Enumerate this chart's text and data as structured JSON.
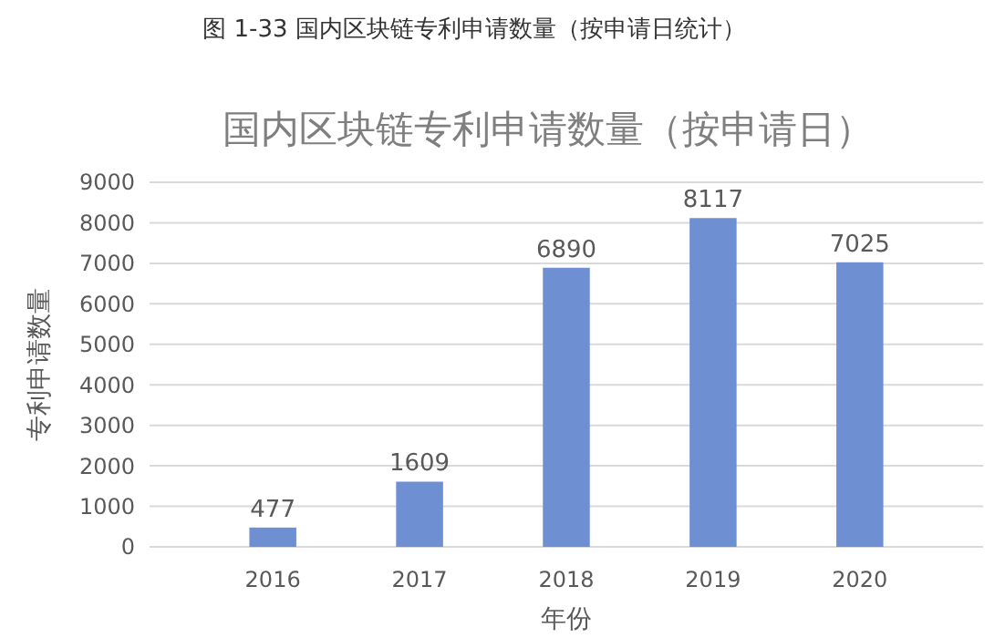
{
  "chart_data": {
    "type": "bar",
    "title": "国内区块链专利申请数量（按申请日）",
    "subtitle": "图 1-33  国内区块链专利申请数量（按申请日统计）",
    "xlabel": "年份",
    "ylabel": "专利申请数量",
    "categories": [
      "2016",
      "2017",
      "2018",
      "2019",
      "2020"
    ],
    "values": [
      477,
      1609,
      6890,
      8117,
      7025
    ],
    "color": "#6f8fd3",
    "ylim": [
      0,
      9000
    ],
    "yticks": [
      0,
      1000,
      2000,
      3000,
      4000,
      5000,
      6000,
      7000,
      8000,
      9000
    ],
    "grid": "y",
    "data_labels": true
  }
}
